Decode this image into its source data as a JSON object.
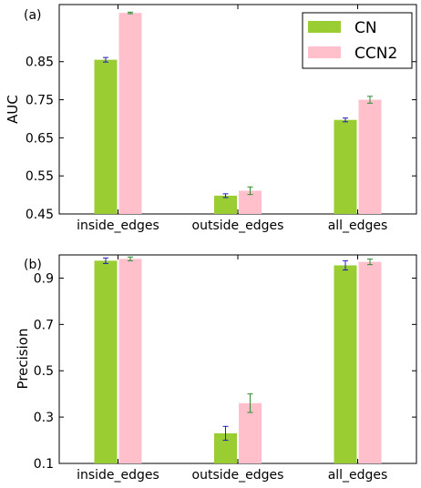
{
  "chart_data": [
    {
      "type": "bar",
      "panel_label": "(a)",
      "ylabel": "AUC",
      "xlabel": "",
      "ylim": [
        0.45,
        1.0
      ],
      "yticks": [
        0.45,
        0.55,
        0.65,
        0.75,
        0.85
      ],
      "categories": [
        "inside_edges",
        "outside_edges",
        "all_edges"
      ],
      "series": [
        {
          "name": "CN",
          "values": [
            0.855,
            0.498,
            0.697
          ],
          "errors": [
            0.006,
            0.005,
            0.005
          ]
        },
        {
          "name": "CCN2",
          "values": [
            0.978,
            0.511,
            0.75
          ],
          "errors": [
            0.002,
            0.01,
            0.009
          ]
        }
      ],
      "legend": {
        "position": "top-right"
      },
      "grid": false
    },
    {
      "type": "bar",
      "panel_label": "(b)",
      "ylabel": "Precision",
      "xlabel": "",
      "ylim": [
        0.1,
        1.0
      ],
      "yticks": [
        0.1,
        0.3,
        0.5,
        0.7,
        0.9
      ],
      "categories": [
        "inside_edges",
        "outside_edges",
        "all_edges"
      ],
      "series": [
        {
          "name": "CN",
          "values": [
            0.975,
            0.23,
            0.955
          ],
          "errors": [
            0.012,
            0.03,
            0.02
          ]
        },
        {
          "name": "CCN2",
          "values": [
            0.983,
            0.36,
            0.97
          ],
          "errors": [
            0.008,
            0.04,
            0.012
          ]
        }
      ],
      "grid": false
    }
  ],
  "colors": {
    "CN": "#9acd32",
    "CCN2": "#ffc0cb",
    "error_CN": "#1f1fbf",
    "error_CCN2": "#2e8b2e"
  }
}
